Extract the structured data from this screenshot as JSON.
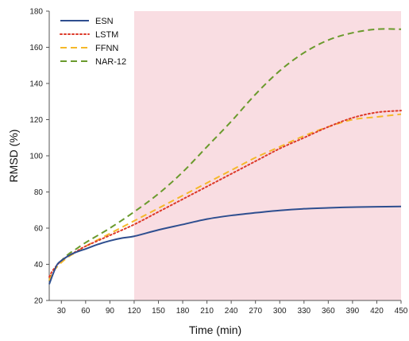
{
  "chart_data": {
    "type": "line",
    "title": "",
    "xlabel": "Time (min)",
    "ylabel": "RMSD (%)",
    "xlim": [
      15,
      450
    ],
    "ylim": [
      20,
      180
    ],
    "xticks": [
      30,
      60,
      90,
      120,
      150,
      180,
      210,
      240,
      270,
      300,
      330,
      360,
      390,
      420,
      450
    ],
    "yticks": [
      20,
      40,
      60,
      80,
      100,
      120,
      140,
      160,
      180
    ],
    "grid": false,
    "legend_position": "top-left",
    "shaded_region": {
      "x_start": 120,
      "x_end": 450,
      "color": "#f9dde2"
    },
    "series": [
      {
        "name": "ESN",
        "color": "#2e4e8f",
        "dash": "solid",
        "x": [
          15,
          20,
          25,
          30,
          40,
          50,
          60,
          75,
          90,
          105,
          120,
          150,
          180,
          210,
          240,
          270,
          300,
          330,
          360,
          390,
          420,
          450
        ],
        "y": [
          29,
          35,
          40,
          42,
          45,
          47,
          48.5,
          51,
          53,
          54.5,
          55.5,
          59,
          62,
          65,
          67,
          68.5,
          69.8,
          70.7,
          71.2,
          71.6,
          71.8,
          72
        ]
      },
      {
        "name": "LSTM",
        "color": "#dd3a2a",
        "dash": "dotted",
        "x": [
          15,
          20,
          30,
          40,
          50,
          60,
          90,
          120,
          150,
          180,
          210,
          240,
          270,
          300,
          330,
          360,
          390,
          420,
          450
        ],
        "y": [
          33,
          37,
          42,
          45,
          47.5,
          50,
          56,
          62,
          69,
          76,
          83,
          90,
          97,
          104,
          110,
          116,
          121,
          124,
          125
        ]
      },
      {
        "name": "FFNN",
        "color": "#f5b82a",
        "dash": "dashed",
        "x": [
          15,
          20,
          30,
          40,
          50,
          60,
          90,
          120,
          150,
          180,
          210,
          240,
          270,
          300,
          330,
          360,
          390,
          420,
          450
        ],
        "y": [
          31,
          36,
          41,
          44.5,
          47,
          50,
          57,
          64,
          71,
          78,
          85,
          92,
          99,
          105,
          111,
          116,
          120,
          121.5,
          123
        ]
      },
      {
        "name": "NAR-12",
        "color": "#6a9a2c",
        "dash": "dashed",
        "x": [
          15,
          20,
          30,
          40,
          50,
          60,
          90,
          120,
          150,
          180,
          210,
          240,
          270,
          300,
          330,
          360,
          390,
          420,
          450
        ],
        "y": [
          31,
          36,
          42,
          46,
          49,
          52,
          60,
          69,
          79,
          91,
          105,
          119,
          134,
          147,
          157,
          164,
          168,
          170,
          170
        ]
      }
    ]
  }
}
